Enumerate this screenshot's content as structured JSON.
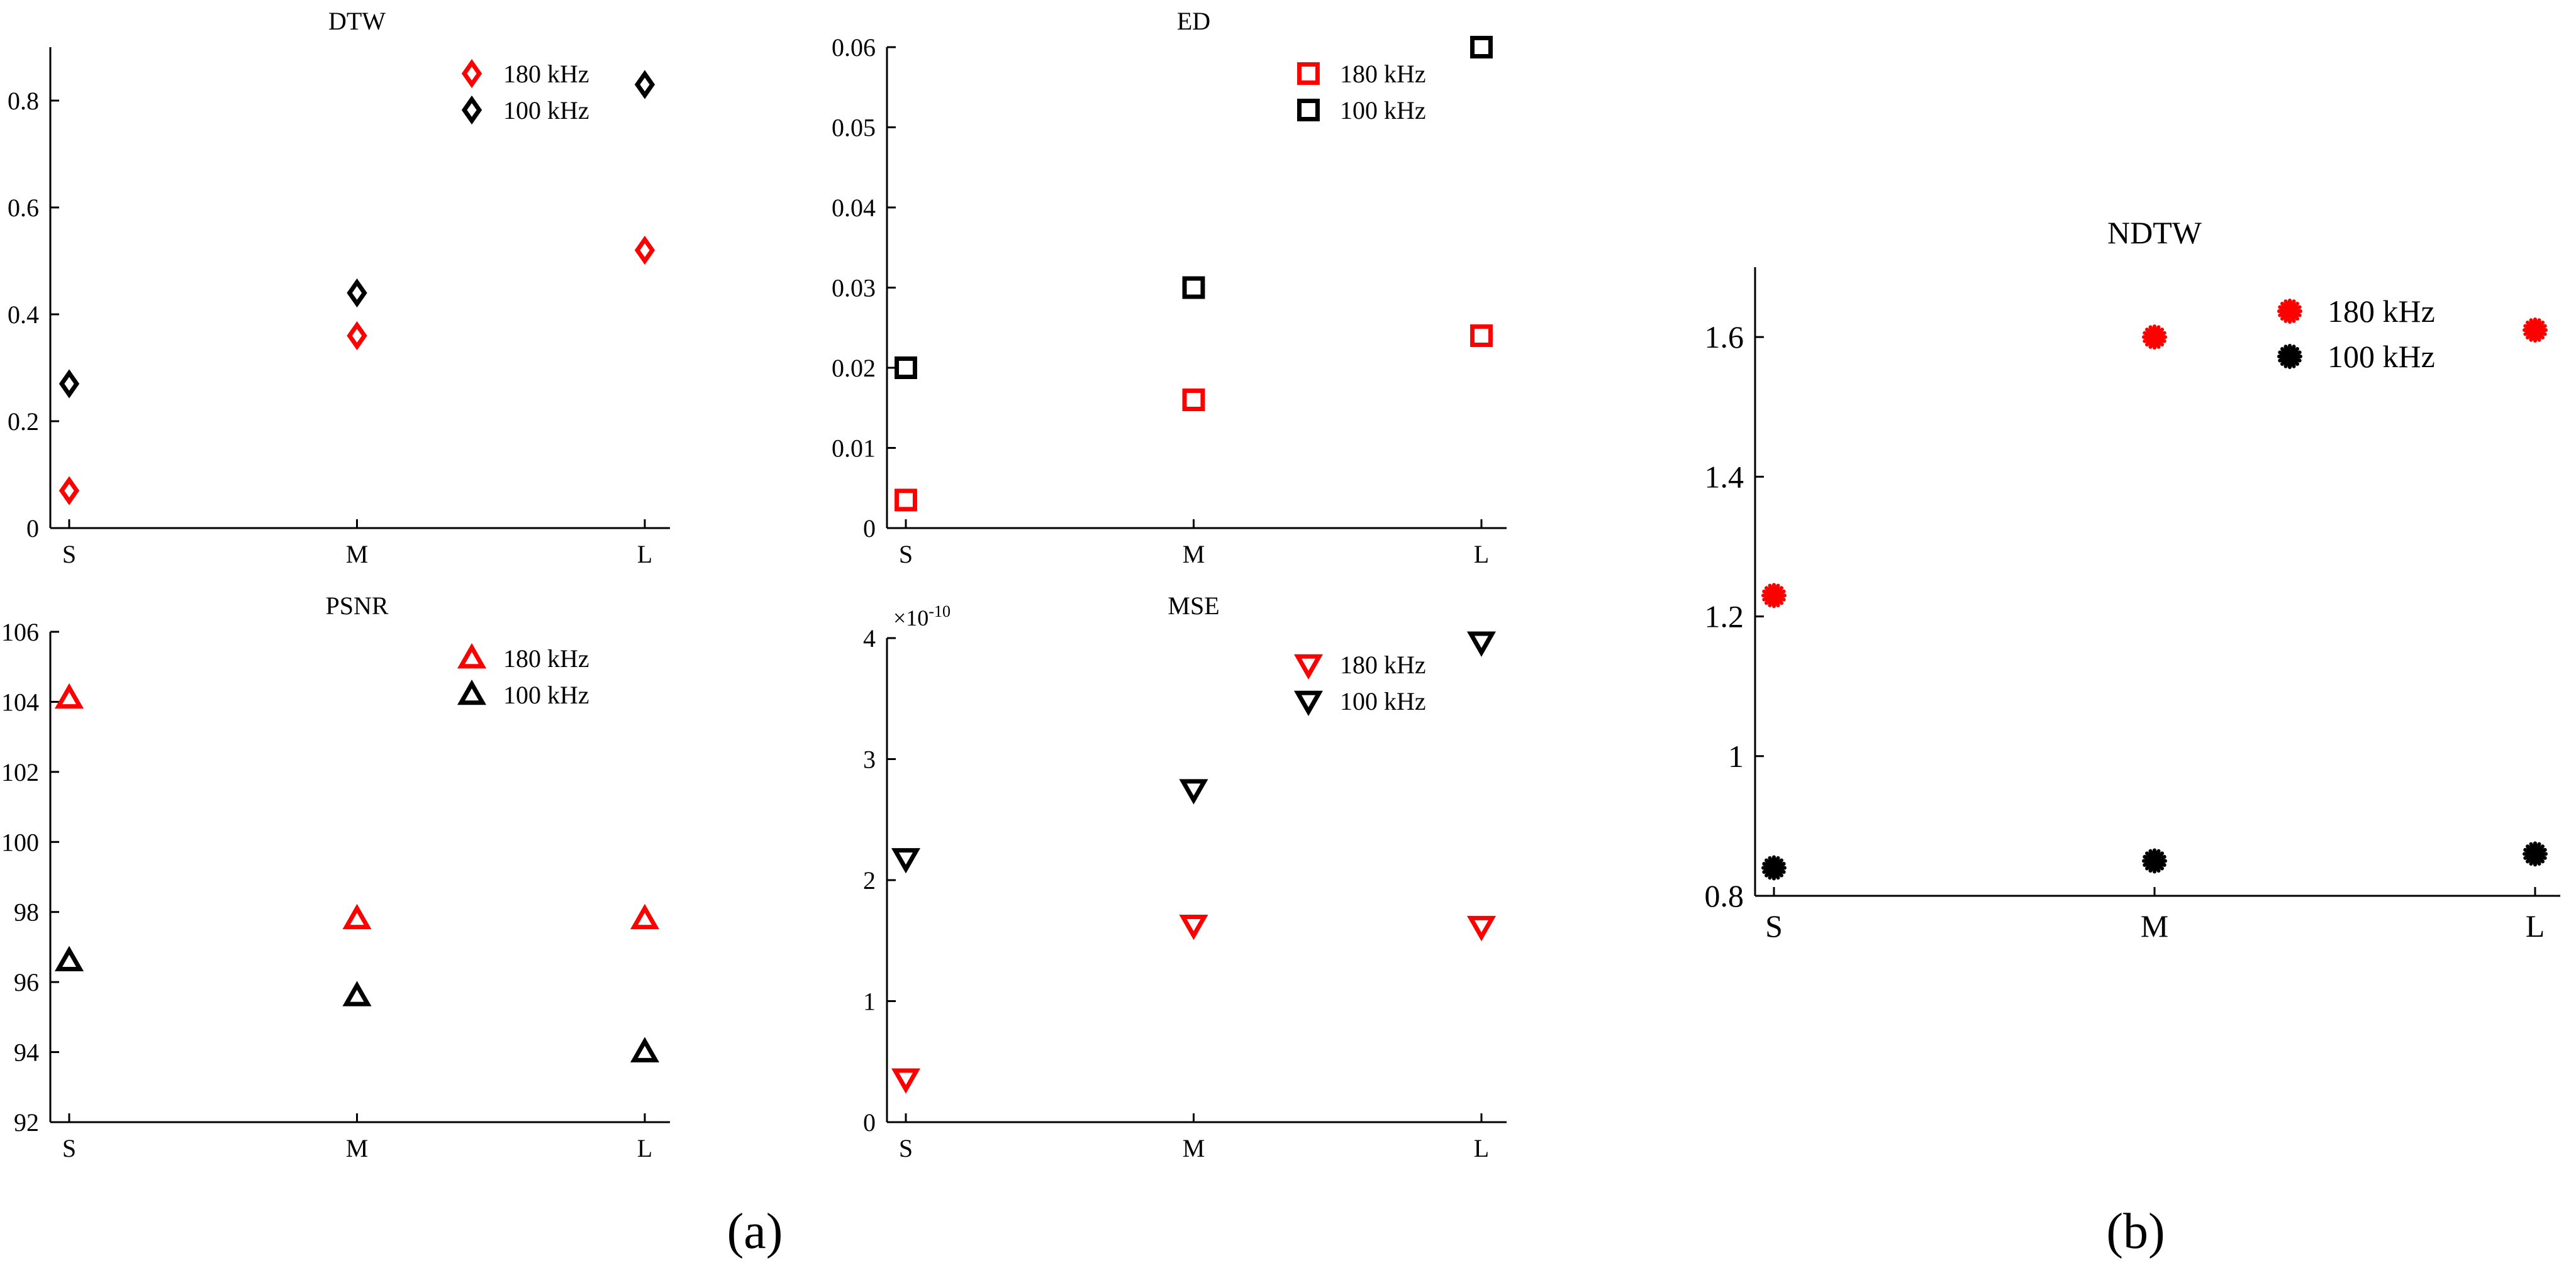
{
  "colors": {
    "series_180": "#ff0000",
    "series_100": "#000000",
    "axis": "#000000",
    "background": "#ffffff"
  },
  "panel_labels": [
    "(a)",
    "(b)"
  ],
  "chart_data": [
    {
      "id": "dtw",
      "type": "scatter",
      "title": "DTW",
      "marker": "diamond",
      "categories": [
        "S",
        "M",
        "L"
      ],
      "ylim": [
        0,
        0.9
      ],
      "yticks": [
        0,
        0.2,
        0.4,
        0.6,
        0.8
      ],
      "ytick_labels": [
        "0",
        "0.2",
        "0.4",
        "0.6",
        "0.8"
      ],
      "series": [
        {
          "name": "180 kHz",
          "color": "#ff0000",
          "values": [
            0.07,
            0.36,
            0.52
          ]
        },
        {
          "name": "100 kHz",
          "color": "#000000",
          "values": [
            0.27,
            0.44,
            0.83
          ]
        }
      ],
      "legend": "top-right",
      "grid": false,
      "xlabel": "",
      "ylabel": ""
    },
    {
      "id": "ed",
      "type": "scatter",
      "title": "ED",
      "marker": "square",
      "categories": [
        "S",
        "M",
        "L"
      ],
      "ylim": [
        0,
        0.06
      ],
      "yticks": [
        0,
        0.01,
        0.02,
        0.03,
        0.04,
        0.05,
        0.06
      ],
      "ytick_labels": [
        "0",
        "0.01",
        "0.02",
        "0.03",
        "0.04",
        "0.05",
        "0.06"
      ],
      "series": [
        {
          "name": "180 kHz",
          "color": "#ff0000",
          "values": [
            0.0035,
            0.016,
            0.024
          ]
        },
        {
          "name": "100 kHz",
          "color": "#000000",
          "values": [
            0.02,
            0.03,
            0.06
          ]
        }
      ],
      "legend": "top-right",
      "grid": false,
      "xlabel": "",
      "ylabel": ""
    },
    {
      "id": "psnr",
      "type": "scatter",
      "title": "PSNR",
      "marker": "triangle-up",
      "categories": [
        "S",
        "M",
        "L"
      ],
      "ylim": [
        92,
        106
      ],
      "yticks": [
        92,
        94,
        96,
        98,
        100,
        102,
        104,
        106
      ],
      "ytick_labels": [
        "92",
        "94",
        "96",
        "98",
        "100",
        "102",
        "104",
        "106"
      ],
      "series": [
        {
          "name": "180 kHz",
          "color": "#ff0000",
          "values": [
            104.1,
            97.8,
            97.8
          ]
        },
        {
          "name": "100 kHz",
          "color": "#000000",
          "values": [
            96.6,
            95.6,
            94.0
          ]
        }
      ],
      "legend": "top-right",
      "grid": false,
      "xlabel": "",
      "ylabel": ""
    },
    {
      "id": "mse",
      "type": "scatter",
      "title": "MSE",
      "marker": "triangle-down",
      "categories": [
        "S",
        "M",
        "L"
      ],
      "scale_exponent_base": "×10",
      "scale_exponent_power": "-10",
      "ylim": [
        0,
        4
      ],
      "yticks": [
        0,
        1,
        2,
        3,
        4
      ],
      "ytick_labels": [
        "0",
        "1",
        "2",
        "3",
        "4"
      ],
      "series": [
        {
          "name": "180 kHz",
          "color": "#ff0000",
          "values": [
            0.36,
            1.63,
            1.62
          ]
        },
        {
          "name": "100 kHz",
          "color": "#000000",
          "values": [
            2.18,
            2.75,
            3.97
          ]
        }
      ],
      "legend": "top-right",
      "grid": false,
      "xlabel": "",
      "ylabel": ""
    },
    {
      "id": "ndtw",
      "type": "scatter",
      "title": "NDTW",
      "marker": "asterisk",
      "categories": [
        "S",
        "M",
        "L"
      ],
      "ylim": [
        0.8,
        1.7
      ],
      "yticks": [
        0.8,
        1.0,
        1.2,
        1.4,
        1.6
      ],
      "ytick_labels": [
        "0.8",
        "1",
        "1.2",
        "1.4",
        "1.6"
      ],
      "series": [
        {
          "name": "180 kHz",
          "color": "#ff0000",
          "values": [
            1.23,
            1.6,
            1.61
          ]
        },
        {
          "name": "100 kHz",
          "color": "#000000",
          "values": [
            0.84,
            0.85,
            0.86
          ]
        }
      ],
      "legend": "top-right",
      "grid": false,
      "xlabel": "",
      "ylabel": ""
    }
  ]
}
